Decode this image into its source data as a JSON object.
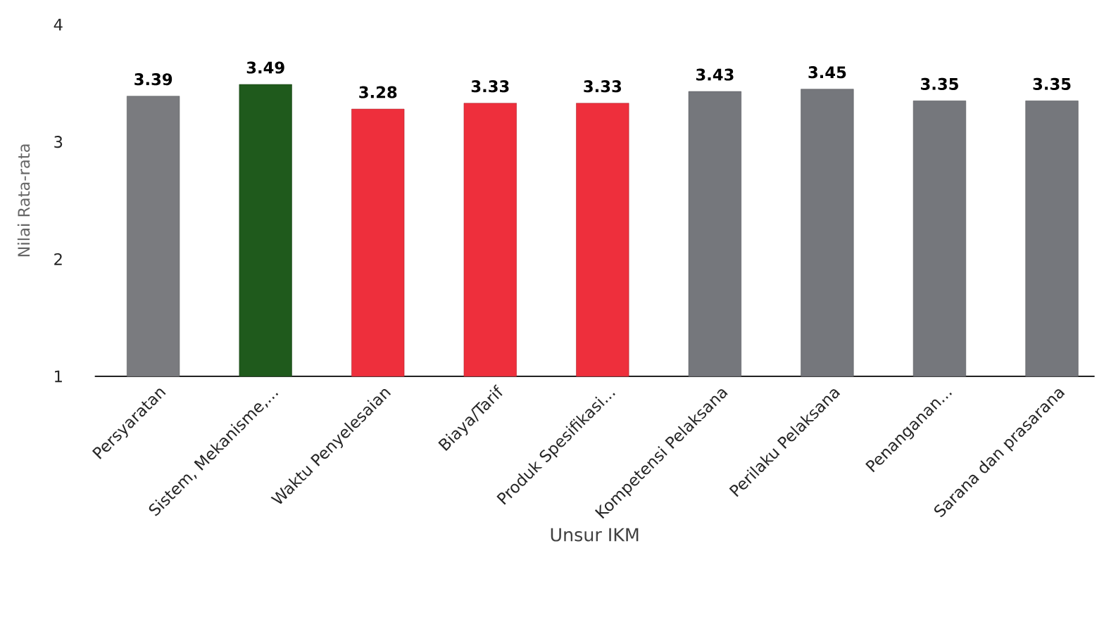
{
  "chart_data": {
    "type": "bar",
    "xlabel": "Unsur IKM",
    "ylabel": "Nilai Rata-rata",
    "categories": [
      "Persyaratan",
      "Sistem, Mekanisme,...",
      "Waktu Penyelesaian",
      "Biaya/Tarif",
      "Produk Spesifikasi...",
      "Kompetensi Pelaksana",
      "Perilaku Pelaksana",
      "Penanganan...",
      "Sarana dan prasarana"
    ],
    "values": [
      3.39,
      3.49,
      3.28,
      3.33,
      3.33,
      3.43,
      3.45,
      3.35,
      3.35
    ],
    "colors": [
      "#7a7b7f",
      "#1f5a1c",
      "#ee2f3c",
      "#ee2f3c",
      "#ee2f3c",
      "#75777c",
      "#75777c",
      "#75777c",
      "#75777c"
    ],
    "ylim": [
      1,
      4
    ],
    "yticks": [
      1,
      2,
      3,
      4
    ],
    "data_labels": true
  }
}
